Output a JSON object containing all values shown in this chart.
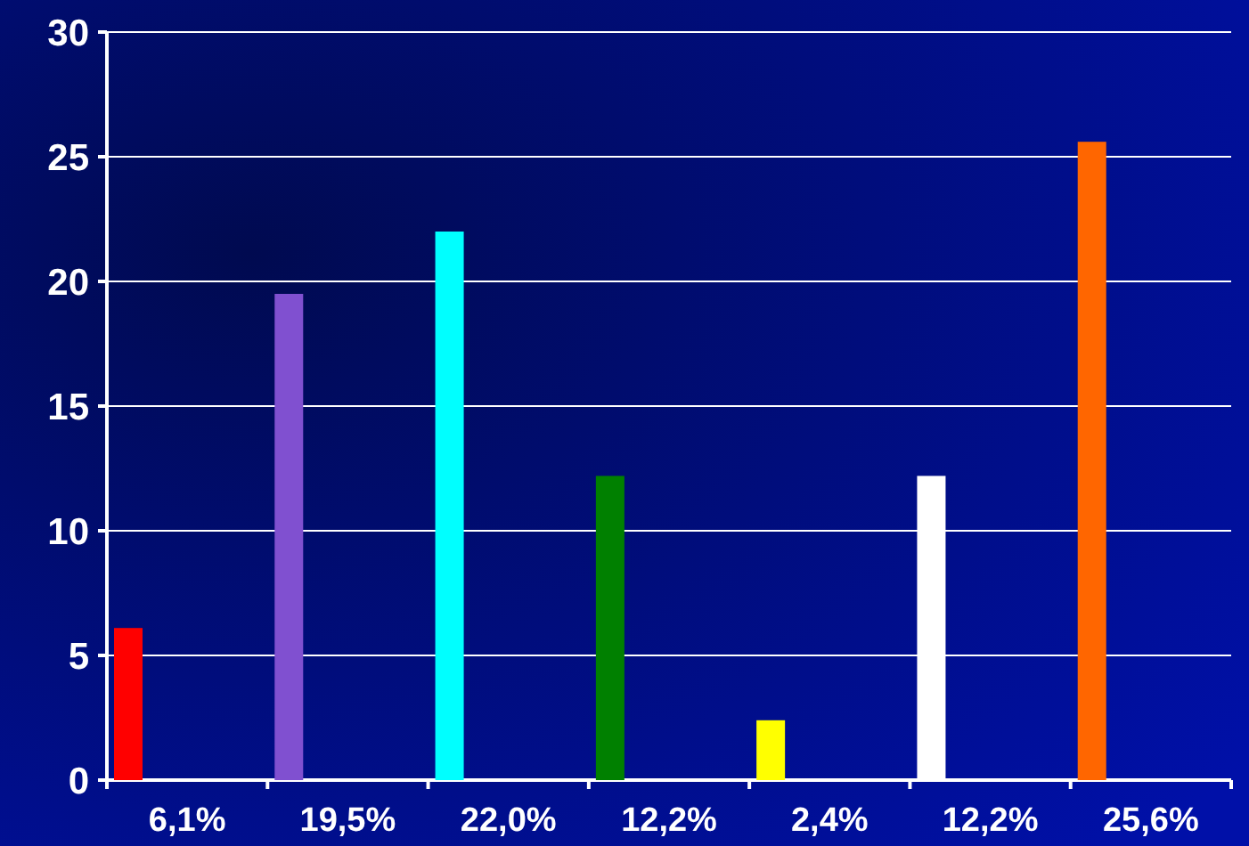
{
  "chart_data": {
    "type": "bar",
    "categories": [
      "6,1%",
      "19,5%",
      "22,0%",
      "12,2%",
      "2,4%",
      "12,2%",
      "25,6%"
    ],
    "values": [
      6.1,
      19.5,
      22.0,
      12.2,
      2.4,
      12.2,
      25.6
    ],
    "colors": [
      "#ff0000",
      "#8050d0",
      "#00ffff",
      "#008000",
      "#ffff00",
      "#ffffff",
      "#ff6600"
    ],
    "ylim": [
      0,
      30
    ],
    "yticks": [
      0,
      5,
      10,
      15,
      20,
      25,
      30
    ],
    "grid": "y"
  }
}
